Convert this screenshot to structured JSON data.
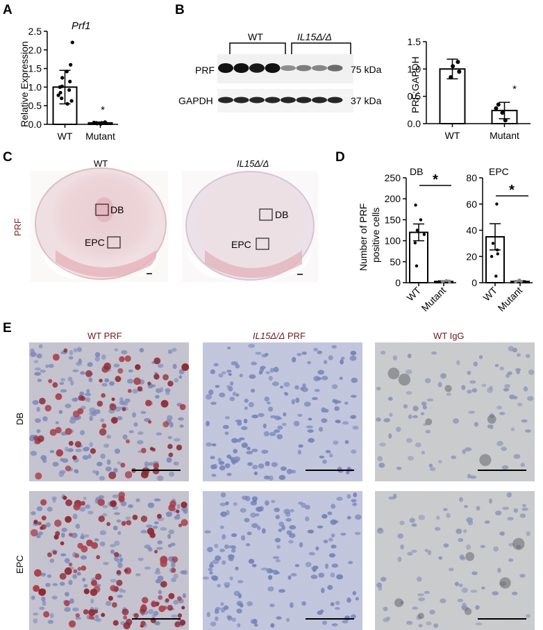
{
  "panel_labels": {
    "A": "A",
    "B": "B",
    "C": "C",
    "D": "D",
    "E": "E"
  },
  "panelA": {
    "title": "Prf1",
    "ylabel": "Relative Expression",
    "significance": "*"
  },
  "panelB": {
    "blot": {
      "group_wt": "WT",
      "group_mut": "IL15Δ/Δ",
      "row1_label": "PRF",
      "row1_size": "75 kDa",
      "row2_label": "GAPDH",
      "row2_size": "37 kDa"
    },
    "ylabel": "PRF:GAPDH",
    "significance": "*"
  },
  "panelC": {
    "title_wt": "WT",
    "title_mut": "IL15Δ/Δ",
    "stain_label": "PRF",
    "box_db": "DB",
    "box_epc": "EPC"
  },
  "panelD": {
    "ylabel_line1": "Number of PRF",
    "ylabel_line2": "positive cells",
    "sub1_title": "DB",
    "sub2_title": "EPC",
    "significance": "*"
  },
  "panelE": {
    "col1": "WT PRF",
    "col2_italic": "IL15Δ/Δ",
    "col2_rest": " PRF",
    "col3": "WT IgG",
    "row1": "DB",
    "row2": "EPC"
  },
  "colors": {
    "stain_red": "#8a1c22",
    "hematoxylin_blue": "#6f7fb8",
    "label_dark_red": "#6b1a1f"
  },
  "chart_data": [
    {
      "id": "A",
      "type": "bar",
      "title": "Prf1",
      "ylabel": "Relative Expression",
      "categories": [
        "WT",
        "Mutant"
      ],
      "values": [
        1.0,
        0.04
      ],
      "error": [
        0.45,
        0.02
      ],
      "points": [
        [
          0.55,
          0.63,
          0.7,
          0.78,
          0.85,
          0.92,
          1.0,
          1.02,
          1.15,
          1.25,
          1.42,
          1.6,
          2.2
        ],
        [
          0.01,
          0.02,
          0.03,
          0.03,
          0.04,
          0.04,
          0.05,
          0.05,
          0.06
        ]
      ],
      "ylim": [
        0,
        2.5
      ],
      "yticks": [
        "0.0",
        "0.5",
        "1.0",
        "1.5",
        "2.0",
        "2.5"
      ]
    },
    {
      "id": "B",
      "type": "bar",
      "ylabel": "PRF:GAPDH",
      "categories": [
        "WT",
        "Mutant"
      ],
      "values": [
        1.0,
        0.24
      ],
      "error": [
        0.18,
        0.15
      ],
      "points": [
        [
          0.85,
          0.95,
          1.05,
          1.13
        ],
        [
          0.06,
          0.2,
          0.28,
          0.35
        ]
      ],
      "ylim": [
        0,
        1.5
      ],
      "yticks": [
        "0.0",
        "0.5",
        "1.0",
        "1.5"
      ]
    },
    {
      "id": "D-DB",
      "type": "bar",
      "title": "DB",
      "ylabel": "Number of PRF positive cells",
      "categories": [
        "WT",
        "Mutant"
      ],
      "values": [
        120,
        3
      ],
      "error": [
        20,
        1.5
      ],
      "points": [
        [
          40,
          95,
          115,
          125,
          150,
          185
        ],
        [
          1,
          2,
          3,
          3,
          4,
          5
        ]
      ],
      "ylim": [
        0,
        250
      ],
      "yticks": [
        "0",
        "50",
        "100",
        "150",
        "200",
        "250"
      ]
    },
    {
      "id": "D-EPC",
      "type": "bar",
      "title": "EPC",
      "categories": [
        "WT",
        "Mutant"
      ],
      "values": [
        35,
        1
      ],
      "error": [
        10,
        0.5
      ],
      "points": [
        [
          5,
          20,
          22,
          25,
          30,
          60
        ],
        [
          0.5,
          1,
          1,
          1.5,
          2
        ]
      ],
      "ylim": [
        0,
        80
      ],
      "yticks": [
        "0",
        "20",
        "40",
        "60",
        "80"
      ]
    }
  ]
}
